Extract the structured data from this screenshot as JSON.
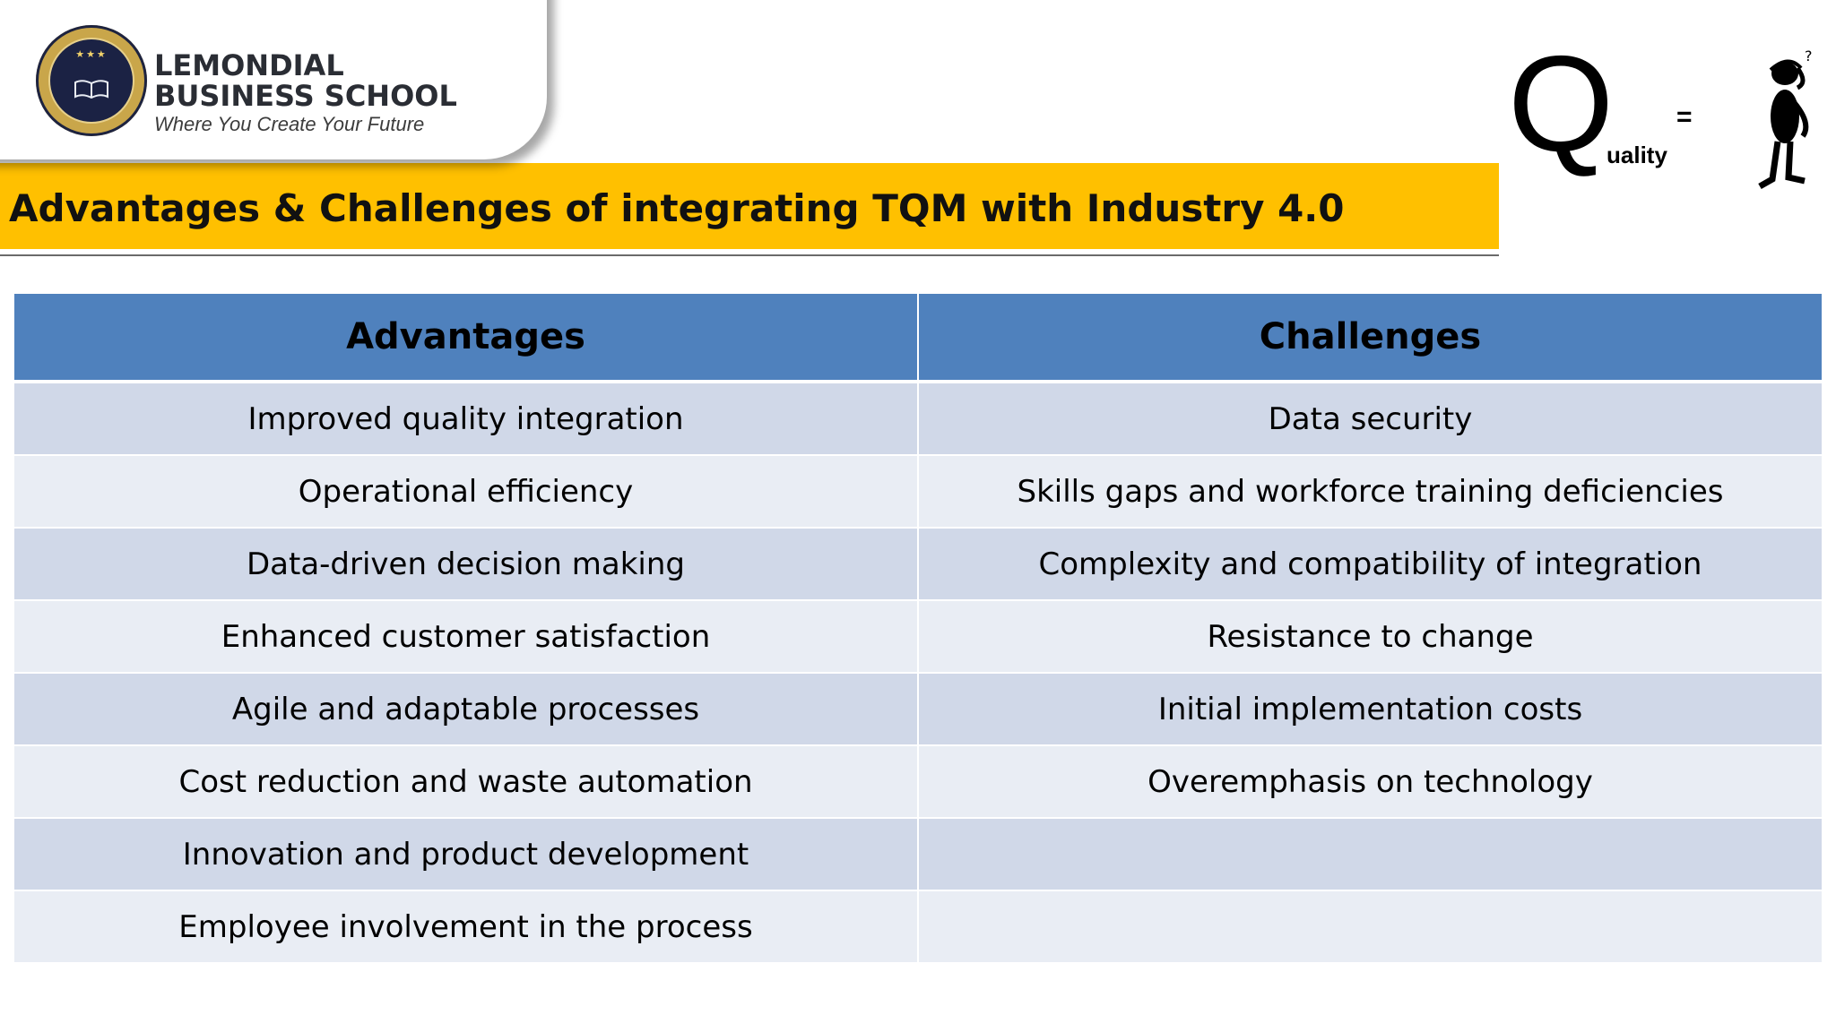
{
  "branding": {
    "school_name_line1": "LEMONDIAL",
    "school_name_line2": "BUSINESS SCHOOL",
    "tagline": "Where You Create Your Future",
    "seal_colors": {
      "ring": "#c9a64a",
      "center": "#1b2244"
    }
  },
  "slide": {
    "title": "Advantages & Challenges of integrating TQM with Industry 4.0",
    "title_bar_color": "#ffc000"
  },
  "quality_graphic": {
    "letter": "Q",
    "suffix": "uality",
    "equals": "=",
    "figure_icon": "thinking-person-icon"
  },
  "table": {
    "header_color": "#4f81bd",
    "row_colors": [
      "#d0d8e8",
      "#e9edf4"
    ],
    "columns": [
      "Advantages",
      "Challenges"
    ],
    "rows": [
      {
        "advantage": "Improved quality integration",
        "challenge": "Data security"
      },
      {
        "advantage": "Operational efficiency",
        "challenge": "Skills gaps and workforce training deficiencies"
      },
      {
        "advantage": "Data-driven decision making",
        "challenge": "Complexity and compatibility of integration"
      },
      {
        "advantage": "Enhanced customer satisfaction",
        "challenge": "Resistance to change"
      },
      {
        "advantage": "Agile and adaptable processes",
        "challenge": "Initial implementation costs"
      },
      {
        "advantage": "Cost reduction and waste automation",
        "challenge": "Overemphasis on technology"
      },
      {
        "advantage": "Innovation and product development",
        "challenge": ""
      },
      {
        "advantage": "Employee involvement in the process",
        "challenge": ""
      }
    ]
  }
}
